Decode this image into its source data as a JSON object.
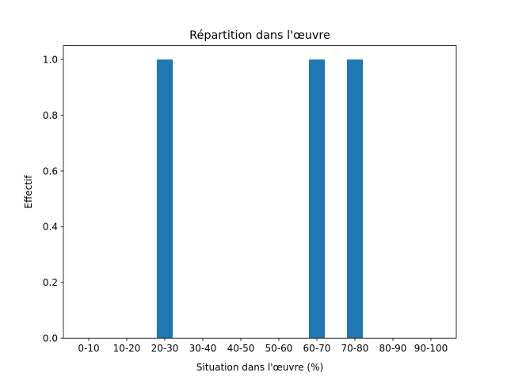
{
  "chart_data": {
    "type": "bar",
    "title": "Répartition dans l'œuvre",
    "xlabel": "Situation dans l'œuvre (%)",
    "ylabel": "Effectif",
    "categories": [
      "0-10",
      "10-20",
      "20-30",
      "30-40",
      "40-50",
      "50-60",
      "60-70",
      "70-80",
      "80-90",
      "90-100"
    ],
    "values": [
      0,
      0,
      1,
      0,
      0,
      0,
      1,
      1,
      0,
      0
    ],
    "ylim": [
      0,
      1.05
    ],
    "yticks": [
      "0.0",
      "0.2",
      "0.4",
      "0.6",
      "0.8",
      "1.0"
    ],
    "grid": false,
    "bar_color": "#1f77b4"
  }
}
